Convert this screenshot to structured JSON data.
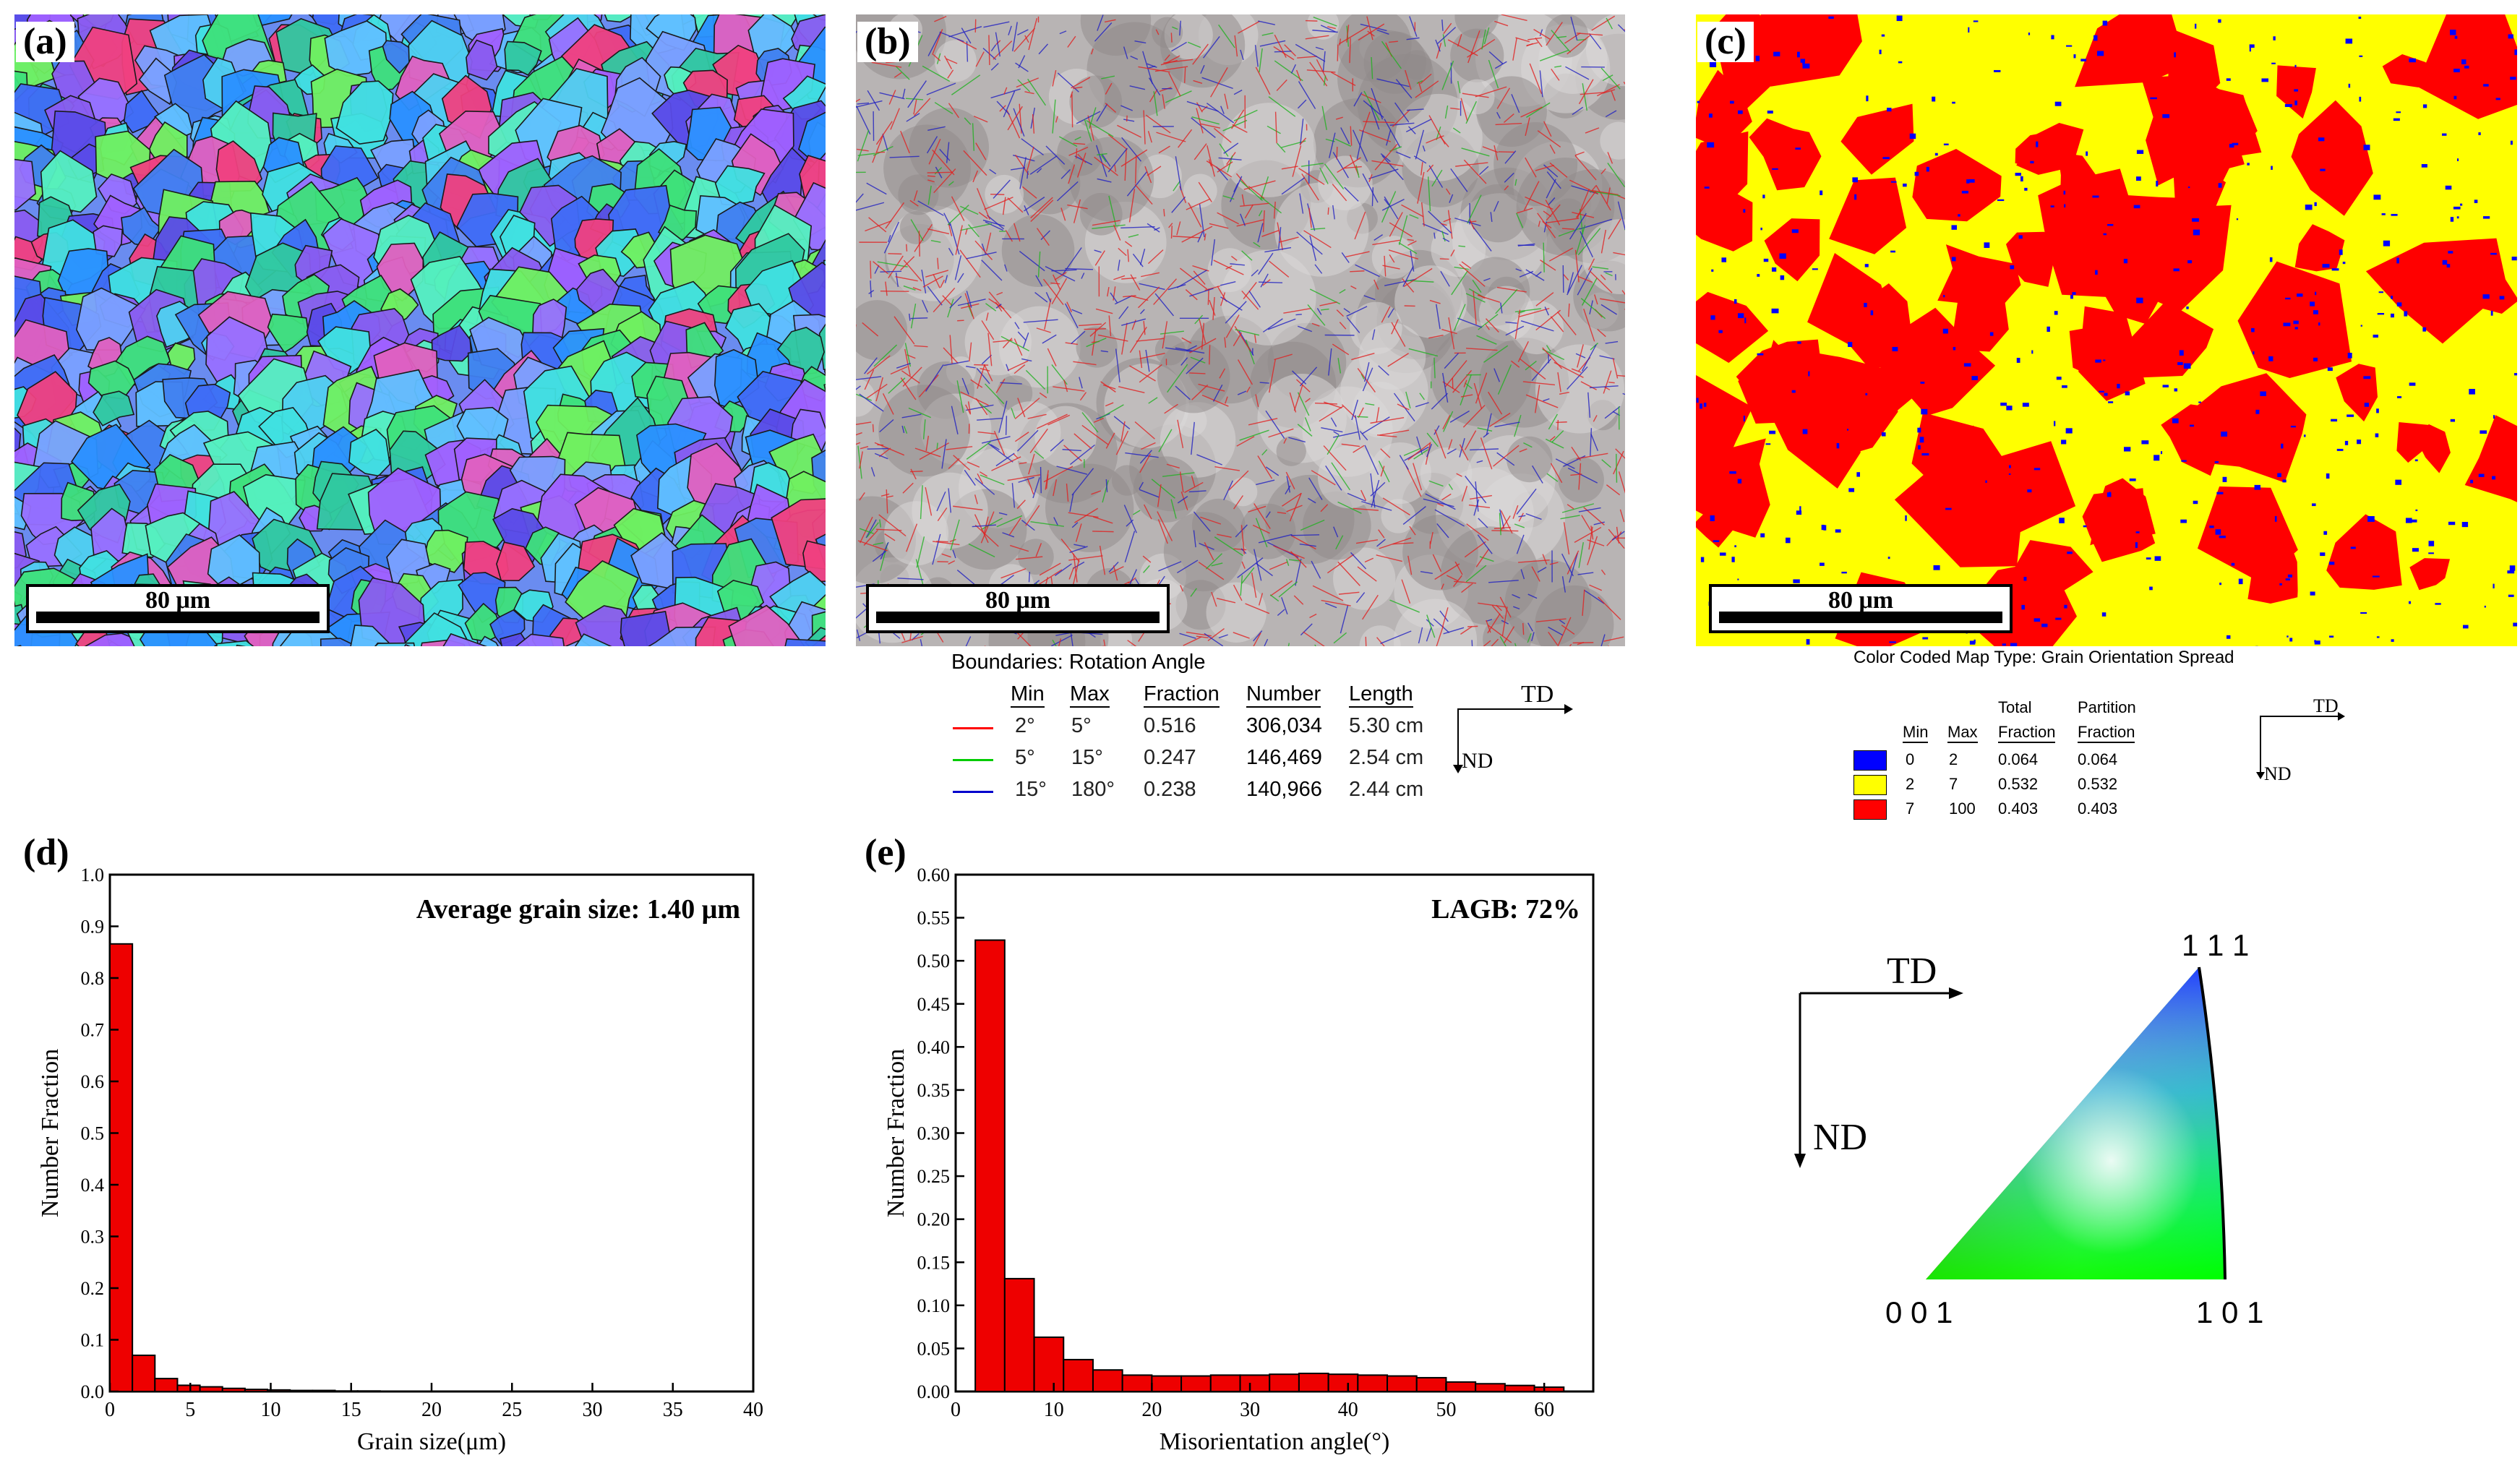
{
  "panels": {
    "a": {
      "label": "(a)",
      "scalebar": "80 μm"
    },
    "b": {
      "label": "(b)",
      "scalebar": "80 μm"
    },
    "c": {
      "label": "(c)",
      "scalebar": "80 μm"
    },
    "d": {
      "label": "(d)"
    },
    "e": {
      "label": "(e)"
    }
  },
  "boundary_legend": {
    "title": "Boundaries: Rotation Angle",
    "headers": [
      "Min",
      "Max",
      "Fraction",
      "Number",
      "Length"
    ],
    "rows": [
      {
        "color": "#ff0000",
        "min": "2°",
        "max": "5°",
        "fraction": "0.516",
        "number": "306,034",
        "length": "5.30 cm"
      },
      {
        "color": "#00cc00",
        "min": "5°",
        "max": "15°",
        "fraction": "0.247",
        "number": "146,469",
        "length": "2.54 cm"
      },
      {
        "color": "#0000cc",
        "min": "15°",
        "max": "180°",
        "fraction": "0.238",
        "number": "140,966",
        "length": "2.44 cm"
      }
    ],
    "td": "TD",
    "nd": "ND"
  },
  "gos_legend": {
    "title": "Color Coded Map Type: Grain Orientation Spread",
    "header_top": [
      "Total",
      "Partition"
    ],
    "headers": [
      "Min",
      "Max",
      "Fraction",
      "Fraction"
    ],
    "rows": [
      {
        "color": "#0000ff",
        "min": "0",
        "max": "2",
        "total": "0.064",
        "partition": "0.064"
      },
      {
        "color": "#ffff00",
        "min": "2",
        "max": "7",
        "total": "0.532",
        "partition": "0.532"
      },
      {
        "color": "#ff0000",
        "min": "7",
        "max": "100",
        "total": "0.403",
        "partition": "0.403"
      }
    ],
    "td": "TD",
    "nd": "ND"
  },
  "ipf_key": {
    "td": "TD",
    "nd": "ND",
    "corner_111": "1 1 1",
    "corner_001": "0 0 1",
    "corner_101": "1 0 1"
  },
  "chart_data": [
    {
      "id": "d",
      "type": "bar",
      "annotation": "Average grain size: 1.40 μm",
      "xlabel": "Grain size(μm)",
      "ylabel": "Number Fraction",
      "xlim": [
        0,
        40
      ],
      "ylim": [
        0,
        1.0
      ],
      "xticks": [
        0,
        5,
        10,
        15,
        20,
        25,
        30,
        35,
        40
      ],
      "yticks": [
        "0.0",
        "0.1",
        "0.2",
        "0.3",
        "0.4",
        "0.5",
        "0.6",
        "0.7",
        "0.8",
        "0.9",
        "1.0"
      ],
      "bin_width": 1.4,
      "x": [
        0.7,
        2.1,
        3.5,
        4.9,
        6.3,
        7.7,
        9.1,
        10.5,
        11.9,
        13.3,
        14.7,
        16.1
      ],
      "values": [
        0.866,
        0.07,
        0.025,
        0.012,
        0.009,
        0.006,
        0.004,
        0.003,
        0.002,
        0.002,
        0.001,
        0.001
      ]
    },
    {
      "id": "e",
      "type": "bar",
      "annotation": "LAGB: 72%",
      "xlabel": "Misorientation angle(°)",
      "ylabel": "Number Fraction",
      "xlim": [
        0,
        65
      ],
      "ylim": [
        0,
        0.6
      ],
      "xticks": [
        0,
        10,
        20,
        30,
        40,
        50,
        60
      ],
      "yticks": [
        "0.00",
        "0.05",
        "0.10",
        "0.15",
        "0.20",
        "0.25",
        "0.30",
        "0.35",
        "0.40",
        "0.45",
        "0.50",
        "0.55",
        "0.60"
      ],
      "bin_width": 3,
      "x": [
        3.5,
        6.5,
        9.5,
        12.5,
        15.5,
        18.5,
        21.5,
        24.5,
        27.5,
        30.5,
        33.5,
        36.5,
        39.5,
        42.5,
        45.5,
        48.5,
        51.5,
        54.5,
        57.5,
        60.5
      ],
      "values": [
        0.524,
        0.131,
        0.063,
        0.037,
        0.025,
        0.019,
        0.018,
        0.018,
        0.019,
        0.019,
        0.02,
        0.021,
        0.02,
        0.019,
        0.018,
        0.016,
        0.011,
        0.009,
        0.007,
        0.005
      ]
    }
  ]
}
